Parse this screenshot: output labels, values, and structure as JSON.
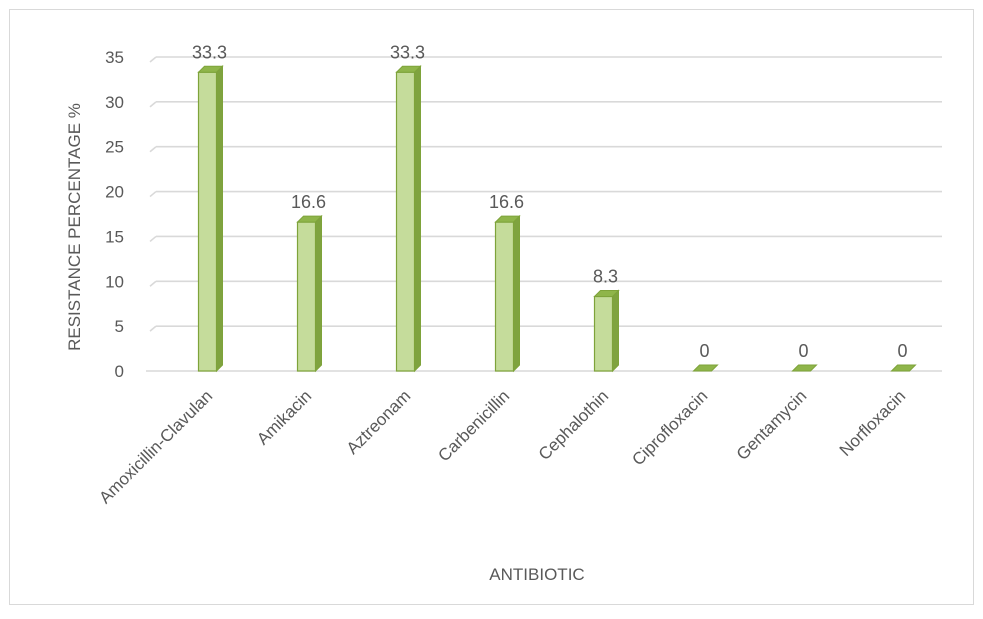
{
  "chart_data": {
    "type": "bar",
    "title": "",
    "xlabel": "ANTIBIOTIC",
    "ylabel": "RESISTANCE PERCENTAGE %",
    "categories": [
      "Amoxicillin-Clavulan",
      "Amikacin",
      "Aztreonam",
      "Carbenicillin",
      "Cephalothin",
      "Ciprofloxacin",
      "Gentamycin",
      "Norfloxacin"
    ],
    "values": [
      33.3,
      16.6,
      33.3,
      16.6,
      8.3,
      0,
      0,
      0
    ],
    "data_labels": [
      "33.3",
      "16.6",
      "33.3",
      "16.6",
      "8.3",
      "0",
      "0",
      "0"
    ],
    "yticks": [
      "0",
      "5",
      "10",
      "15",
      "20",
      "25",
      "30",
      "35"
    ],
    "ylim": [
      0,
      35
    ],
    "grid": true,
    "legend": "none",
    "colors": {
      "bar_front": "#c5dc9b",
      "bar_side": "#7fa33f",
      "bar_top": "#8fb54a",
      "bar_edge": "#7ea33a",
      "grid": "#d9d9d9",
      "text": "#595959",
      "frame": "#d9d9d9"
    }
  }
}
